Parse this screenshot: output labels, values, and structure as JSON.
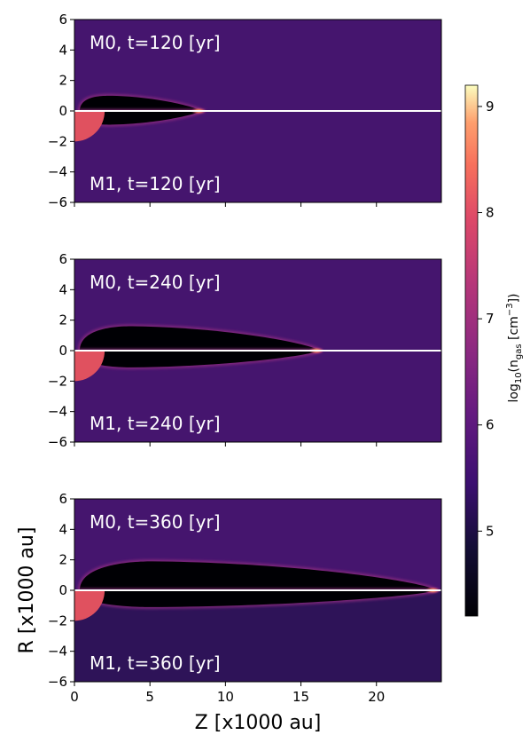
{
  "chart_data": {
    "type": "heatmap",
    "xlabel": "Z [x1000 au]",
    "ylabel": "R [x1000 au]",
    "xlim": [
      0,
      24.3
    ],
    "ylim": [
      -6,
      6
    ],
    "xticks": [
      "0",
      "5",
      "10",
      "15",
      "20"
    ],
    "yticks": [
      "6",
      "4",
      "2",
      "0",
      "−2",
      "−4",
      "−6"
    ],
    "colorbar": {
      "label": "log10(n_gas [cm^-3])",
      "range": [
        4.2,
        9.2
      ],
      "ticks": [
        "5",
        "6",
        "7",
        "8",
        "9"
      ]
    },
    "panels": [
      {
        "top_label": "M0, t=120 [yr]",
        "bottom_label": "M1, t=120 [yr]",
        "upper": {
          "shell_tip_z": 8.4,
          "shell_max_r": 1.0,
          "background_log_n": 5.5
        },
        "lower": {
          "shell_tip_z": 8.4,
          "shell_max_r": 0.9,
          "background_log_n": 5.5
        }
      },
      {
        "top_label": "M0, t=240 [yr]",
        "bottom_label": "M1, t=240 [yr]",
        "upper": {
          "shell_tip_z": 16.2,
          "shell_max_r": 1.6,
          "background_log_n": 5.5
        },
        "lower": {
          "shell_tip_z": 16.2,
          "shell_max_r": 1.1,
          "background_log_n": 5.5
        }
      },
      {
        "top_label": "M0, t=360 [yr]",
        "bottom_label": "M1, t=360 [yr]",
        "upper": {
          "shell_tip_z": 23.9,
          "shell_max_r": 1.9,
          "background_log_n": 5.5
        },
        "lower": {
          "shell_tip_z": 23.9,
          "shell_max_r": 1.1,
          "background_log_n": 5.2
        }
      }
    ],
    "source_region": {
      "radius": 2.0,
      "log_n": 7.6
    }
  },
  "colors": {
    "background_upper": "#45156e",
    "background_lower": "#45156e",
    "background_lower_late": "#2e1358",
    "cavity": "#000004",
    "shell_edge": "#8c2980",
    "shell_tip": "#fcad6b",
    "source": "#e0515f",
    "midplane": "#ffffff"
  },
  "colorbar_label_text": {
    "main": "log",
    "sub": "10",
    "rest": "(n",
    "gas": "gas",
    "unit": " [cm",
    "exp": "−3",
    "close": "])"
  }
}
